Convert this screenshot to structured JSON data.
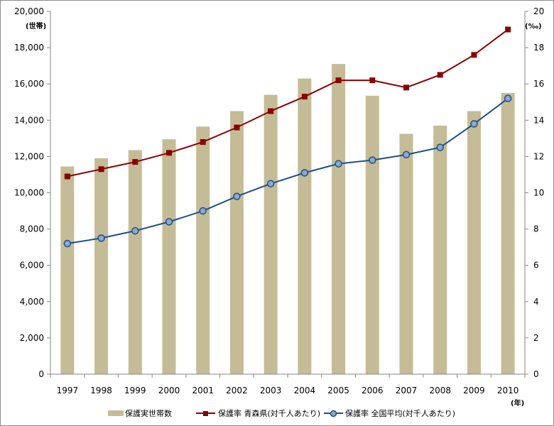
{
  "chart_data": {
    "type": "bar",
    "categories": [
      "1997",
      "1998",
      "1999",
      "2000",
      "2001",
      "2002",
      "2003",
      "2004",
      "2005",
      "2006",
      "2007",
      "2008",
      "2009",
      "2010"
    ],
    "xunit": "(年)",
    "left_axis": {
      "unit": "(世帯)",
      "ylim": [
        0,
        20000
      ],
      "ticks": [
        "0",
        "2,000",
        "4,000",
        "6,000",
        "8,000",
        "10,000",
        "12,000",
        "14,000",
        "16,000",
        "18,000",
        "20,000"
      ],
      "tick_values": [
        0,
        2000,
        4000,
        6000,
        8000,
        10000,
        12000,
        14000,
        16000,
        18000,
        20000
      ]
    },
    "right_axis": {
      "unit": "(‰)",
      "ylim": [
        0,
        20
      ],
      "ticks": [
        "0",
        "2",
        "4",
        "6",
        "8",
        "10",
        "12",
        "14",
        "16",
        "18",
        "20"
      ],
      "tick_values": [
        0,
        2,
        4,
        6,
        8,
        10,
        12,
        14,
        16,
        18,
        20
      ]
    },
    "series": [
      {
        "name": "保護実世帯数",
        "kind": "bar",
        "axis": "left",
        "color": "#c4bc96",
        "values": [
          11450,
          11900,
          12350,
          12950,
          13650,
          14500,
          15400,
          16300,
          17100,
          15350,
          13250,
          13700,
          14500,
          15500
        ]
      },
      {
        "name": "保護率 青森県(対千人あたり)",
        "kind": "line",
        "axis": "right",
        "color": "#8b0000",
        "marker": "square",
        "values": [
          10.9,
          11.3,
          11.7,
          12.2,
          12.8,
          13.6,
          14.5,
          15.3,
          16.2,
          16.2,
          15.8,
          16.5,
          17.6,
          19.0
        ]
      },
      {
        "name": "保護率 全国平均(対千人あたり)",
        "kind": "line",
        "axis": "right",
        "color": "#1f4e8c",
        "marker": "circle",
        "values": [
          7.2,
          7.5,
          7.9,
          8.4,
          9.0,
          9.8,
          10.5,
          11.1,
          11.6,
          11.8,
          12.1,
          12.5,
          13.8,
          15.2
        ]
      }
    ],
    "grid": false,
    "legend_position": "bottom"
  }
}
